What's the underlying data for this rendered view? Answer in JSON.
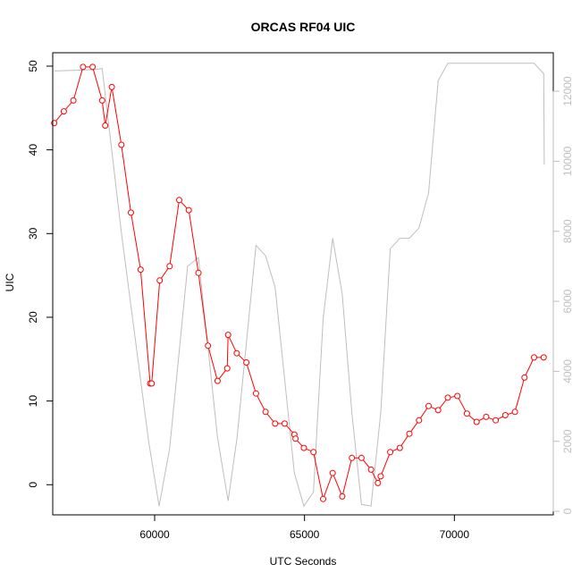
{
  "chart_data": {
    "type": "line",
    "title": "ORCAS RF04 UIC",
    "xlabel": "UTC Seconds",
    "ylabel": "UIC",
    "xlim": [
      56600,
      73300
    ],
    "ylim": [
      -3.6,
      51.6
    ],
    "y2lim": [
      -100,
      13100
    ],
    "x_ticks": [
      60000,
      65000,
      70000
    ],
    "y_ticks": [
      0,
      10,
      20,
      30,
      40,
      50
    ],
    "y2_ticks": [
      0,
      2000,
      4000,
      6000,
      8000,
      10000,
      12000
    ],
    "grid": false,
    "legend": "none",
    "series": [
      {
        "color": "#ff0000",
        "axis": "left",
        "style": "line-with-open-circles",
        "x": [
          56650,
          56970,
          57290,
          57610,
          57930,
          58250,
          58350,
          58570,
          58890,
          59210,
          59530,
          59850,
          59900,
          60170,
          60500,
          60820,
          61140,
          61460,
          61780,
          62100,
          62420,
          62450,
          62740,
          63060,
          63380,
          63700,
          64020,
          64340,
          64660,
          64700,
          64980,
          65300,
          65620,
          65940,
          66260,
          66580,
          66900,
          67220,
          67450,
          67540,
          67860,
          68180,
          68500,
          68820,
          69140,
          69460,
          69780,
          70100,
          70420,
          70740,
          71060,
          71380,
          71700,
          72020,
          72340,
          72660,
          72980
        ],
        "values": [
          43.2,
          44.6,
          45.9,
          49.9,
          49.9,
          45.9,
          42.9,
          47.5,
          40.6,
          32.5,
          25.7,
          12.1,
          12.1,
          24.4,
          26.1,
          34.0,
          32.8,
          25.3,
          16.6,
          12.4,
          13.9,
          17.9,
          15.7,
          14.6,
          10.9,
          8.7,
          7.3,
          7.3,
          6.0,
          5.5,
          4.4,
          3.9,
          -1.7,
          1.4,
          -1.4,
          3.2,
          3.2,
          1.8,
          0.2,
          1.0,
          3.9,
          4.4,
          6.1,
          7.7,
          9.4,
          8.9,
          10.4,
          10.6,
          8.5,
          7.5,
          8.1,
          7.7,
          8.3,
          8.7,
          12.8,
          15.2,
          15.2
        ]
      },
      {
        "color": "#bebebe",
        "axis": "right",
        "style": "line",
        "x": [
          56650,
          57400,
          58050,
          58250,
          58900,
          59800,
          60150,
          60500,
          61100,
          61460,
          62100,
          62450,
          62750,
          63380,
          63700,
          64020,
          64660,
          64980,
          65300,
          65620,
          65940,
          66260,
          66580,
          66900,
          67220,
          67540,
          67860,
          68180,
          68500,
          68820,
          69140,
          69460,
          69780,
          70100,
          70420,
          70740,
          71060,
          71380,
          71700,
          72020,
          72340,
          72660,
          72980,
          73000
        ],
        "values": [
          12580,
          12600,
          12620,
          12650,
          7900,
          2000,
          150,
          1800,
          7000,
          7250,
          2100,
          300,
          2100,
          7600,
          7300,
          6400,
          1100,
          150,
          550,
          5500,
          7800,
          6200,
          2800,
          200,
          150,
          2800,
          7500,
          7800,
          7800,
          8100,
          9100,
          12300,
          12800,
          12800,
          12800,
          12800,
          12800,
          12800,
          12800,
          12800,
          12800,
          12800,
          12500,
          9900
        ]
      }
    ]
  }
}
